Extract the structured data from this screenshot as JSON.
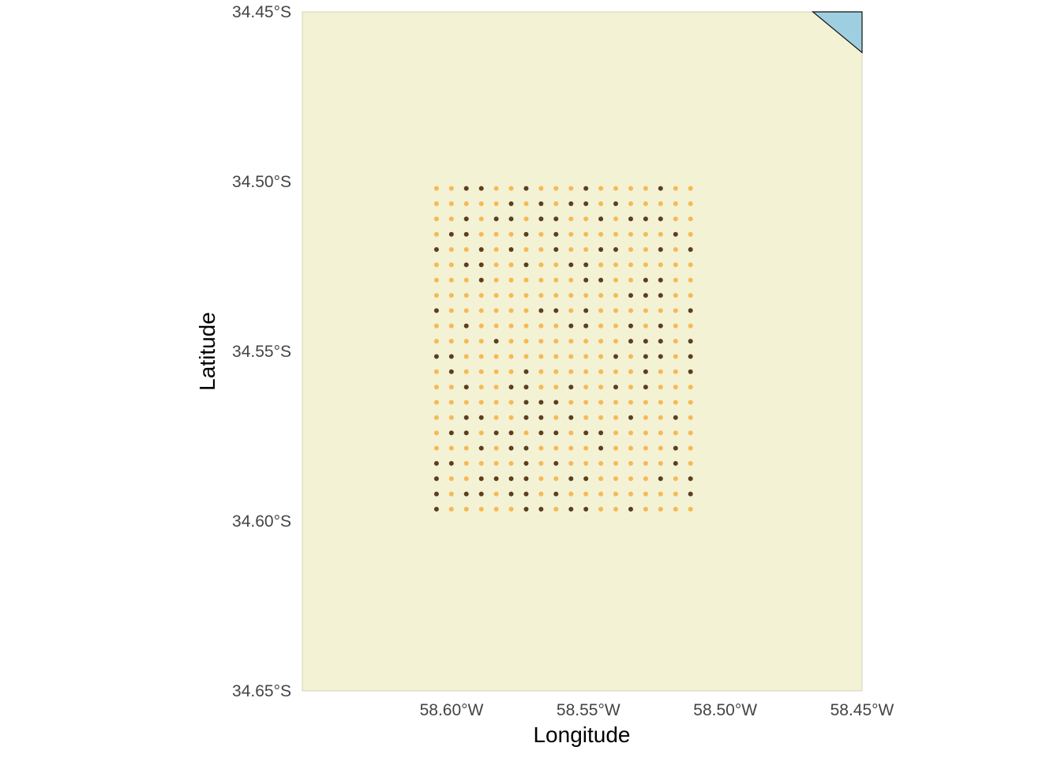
{
  "map": {
    "xlabel": "Longitude",
    "ylabel": "Latitude",
    "x_ticks": [
      {
        "value": -58.6,
        "label": "58.60°W"
      },
      {
        "value": -58.55,
        "label": "58.55°W"
      },
      {
        "value": -58.5,
        "label": "58.50°W"
      },
      {
        "value": -58.45,
        "label": "58.45°W"
      }
    ],
    "y_ticks": [
      {
        "value": -34.45,
        "label": "34.45°S"
      },
      {
        "value": -34.5,
        "label": "34.50°S"
      },
      {
        "value": -34.55,
        "label": "34.55°S"
      },
      {
        "value": -34.6,
        "label": "34.60°S"
      },
      {
        "value": -34.65,
        "label": "34.65°S"
      }
    ],
    "xlim": [
      -58.6545,
      -58.45
    ],
    "ylim": [
      -34.65,
      -34.45
    ],
    "colors": {
      "land": "#f3f2d4",
      "water": "#9ecfe0",
      "dot_light": "#f7b954",
      "dot_dark": "#5c3f1e"
    },
    "water_polygon": [
      [
        -58.468,
        -34.45
      ],
      [
        -58.45,
        -34.45
      ],
      [
        -58.45,
        -34.462
      ]
    ],
    "grid": {
      "lon_start": -58.6055,
      "lon_step": 0.00546,
      "lon_count": 18,
      "lat_start": -34.502,
      "lat_step": 0.0045,
      "lat_count": 22,
      "pattern": [
        "LLDDLLDLLLDLLLLDLL",
        "LLLLLDLDLDDLDLLLLL",
        "LLDLDDLDDLLDLDDDLL",
        "LDDLLLDLDLLLLLLLDL",
        "DLLDLDLLDLLDDLLDLD",
        "LLDDLLDLLDDLLLLLLL",
        "LLLDLLLLLLDDLLDDLL",
        "LLLLLLLLLLLLLDDDLL",
        "DLLLLLLDDLDLLLLLLD",
        "LLDLLLLLLDDLLDLDLL",
        "LLLLDLLLLLLLLDDDLD",
        "DDLLLLLLLLLLDLDDLD",
        "LDLLLLDLLLLLLLDLLD",
        "LLDLLDDLLDLLDLDLLL",
        "LLLLLLDDDLLLLLLLLL",
        "LLDDLLDDLDLLLDLLDL",
        "LDDLDDLDDLDDLLLLLL",
        "LLLDLDDLLLLDLLLLDL",
        "DDLLLLDLDLLLLLLLDL",
        "DLLDDDDLLDDLLLLDLD",
        "DLDDLDDLDLLLLLLLLD",
        "DLLLLLDDLDDLLDLLLL"
      ]
    }
  }
}
